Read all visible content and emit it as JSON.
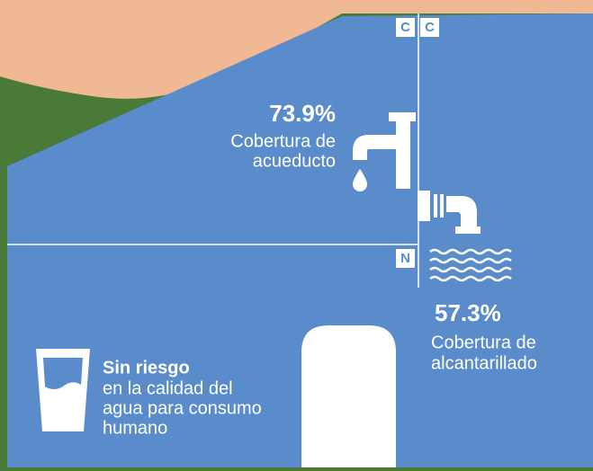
{
  "markers": [
    "C",
    "C",
    "N"
  ],
  "aqueduct": {
    "value": "73.9%",
    "lines": [
      "Cobertura de",
      "acueducto"
    ]
  },
  "sewer": {
    "value": "57.3%",
    "lines": [
      "Cobertura de",
      "alcantarillado"
    ]
  },
  "water_quality": {
    "title": "Sin riesgo",
    "lines": [
      "en la calidad del",
      "agua para consumo",
      "humano"
    ]
  }
}
